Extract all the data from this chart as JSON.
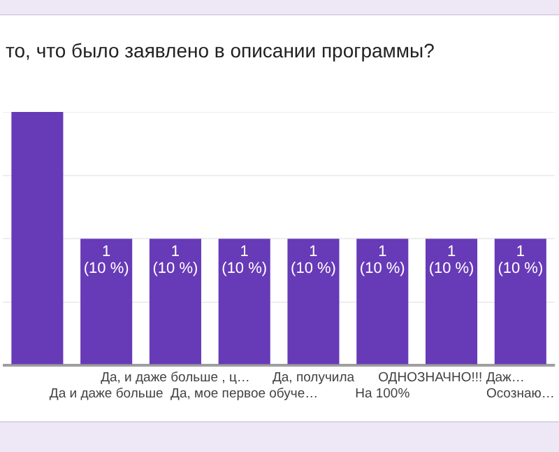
{
  "chart_data": {
    "type": "bar",
    "title": "то, что было заявлено в описании программы?",
    "categories": [
      null,
      "Да и даже больше",
      "Да, и даже больше , ц…",
      "Да, мое первое обуче…",
      "Да, получила",
      "На 100%",
      "ОДНОЗНАЧНО!!! Даж…",
      "Осознаю…"
    ],
    "values": [
      2,
      1,
      1,
      1,
      1,
      1,
      1,
      1
    ],
    "value_labels": [
      null,
      "1\n(10 %)",
      "1\n(10 %)",
      "1\n(10 %)",
      "1\n(10 %)",
      "1\n(10 %)",
      "1\n(10 %)",
      "1\n(10 %)"
    ],
    "color": "#673ab7",
    "ylim": [
      0,
      2
    ],
    "yticks": [
      {
        "value": 0,
        "label": null
      },
      {
        "value": 0.5,
        "label": null
      },
      {
        "value": 1,
        "label": null
      },
      {
        "value": 1.5,
        "label": null
      },
      {
        "value": 2,
        "label": null
      }
    ],
    "grid": "y",
    "legend": false,
    "tick_labels": "x"
  }
}
